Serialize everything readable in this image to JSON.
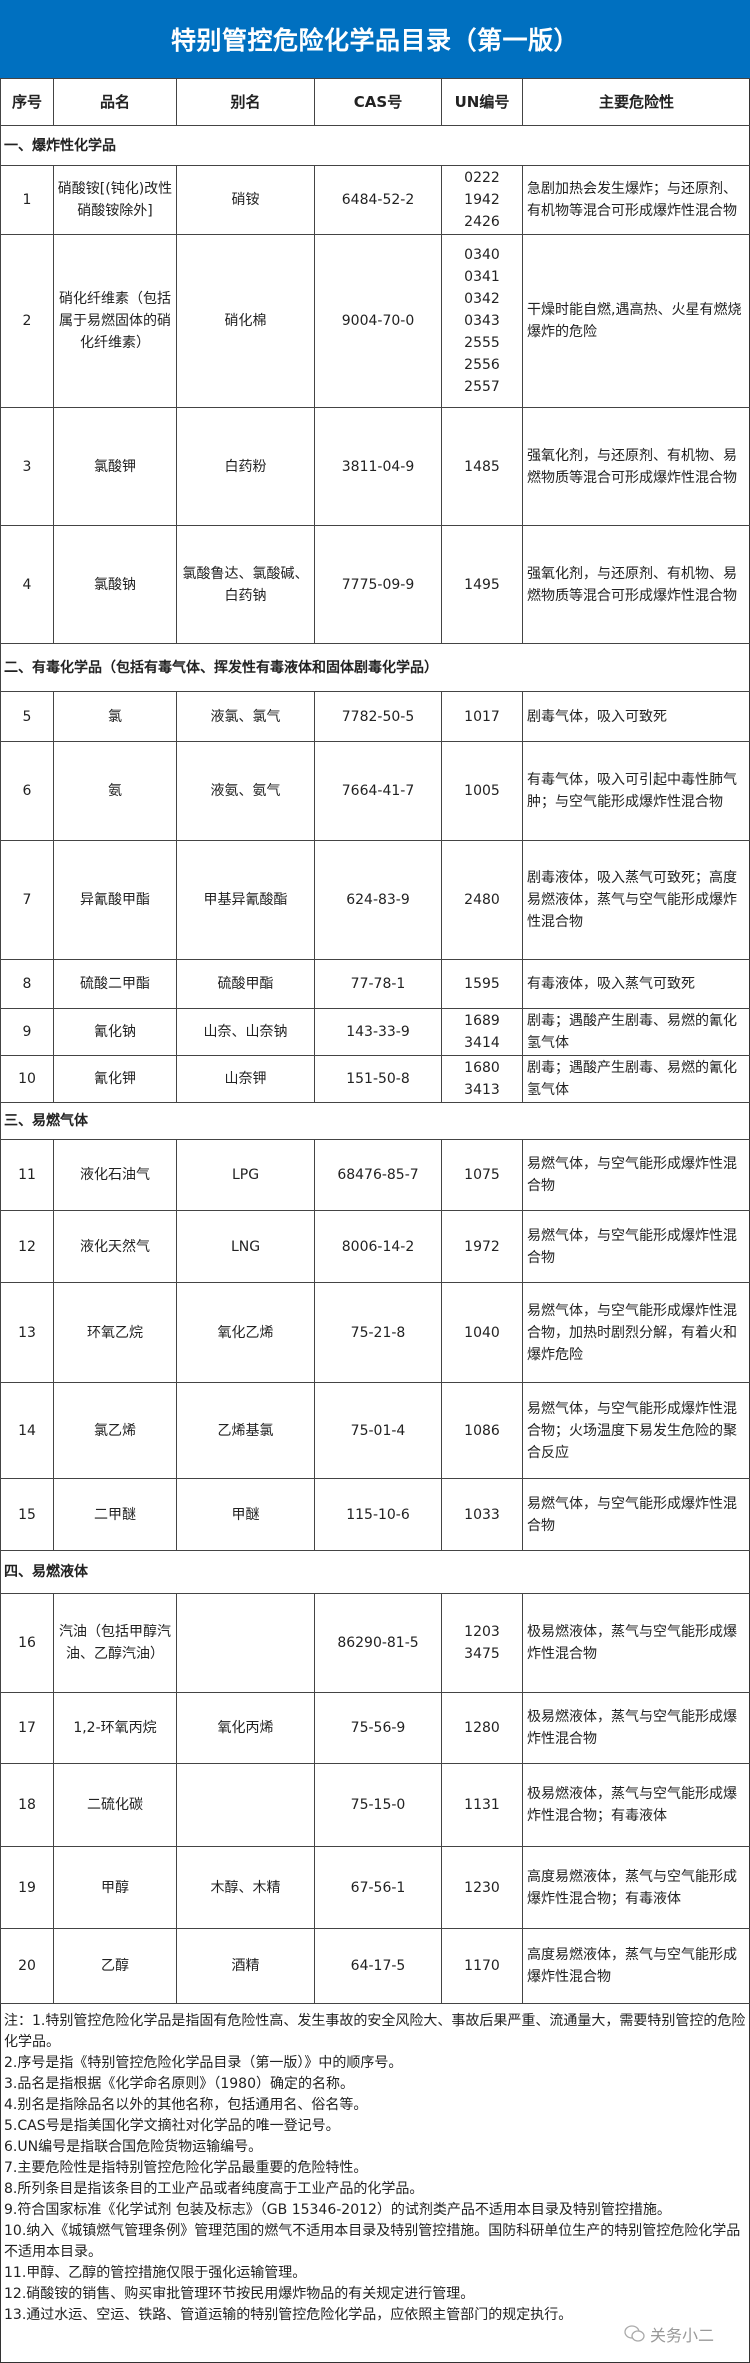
{
  "title": "特别管控危险化学品目录（第一版）",
  "columns": [
    "序号",
    "品名",
    "别名",
    "CAS号",
    "UN编号",
    "主要危险性"
  ],
  "sections": [
    {
      "heading": "一、爆炸性化学品",
      "rows": [
        {
          "no": "1",
          "name": "硝酸铵[(钝化)改性硝酸铵除外]",
          "alias": "硝铵",
          "cas": "6484-52-2",
          "un": "0222\n1942\n2426",
          "hazard": "急剧加热会发生爆炸；与还原剂、有机物等混合可形成爆炸性混合物"
        },
        {
          "no": "2",
          "name": "硝化纤维素（包括属于易燃固体的硝化纤维素）",
          "alias": "硝化棉",
          "cas": "9004-70-0",
          "un": "0340\n0341\n0342\n0343\n2555\n2556\n2557",
          "hazard": "干燥时能自燃,遇高热、火星有燃烧爆炸的危险"
        },
        {
          "no": "3",
          "name": "氯酸钾",
          "alias": "白药粉",
          "cas": "3811-04-9",
          "un": "1485",
          "hazard": "强氧化剂，与还原剂、有机物、易燃物质等混合可形成爆炸性混合物"
        },
        {
          "no": "4",
          "name": "氯酸钠",
          "alias": "氯酸鲁达、氯酸碱、白药钠",
          "cas": "7775-09-9",
          "un": "1495",
          "hazard": "强氧化剂，与还原剂、有机物、易燃物质等混合可形成爆炸性混合物"
        }
      ]
    },
    {
      "heading": "二、有毒化学品（包括有毒气体、挥发性有毒液体和固体剧毒化学品）",
      "rows": [
        {
          "no": "5",
          "name": "氯",
          "alias": "液氯、氯气",
          "cas": "7782-50-5",
          "un": "1017",
          "hazard": "剧毒气体，吸入可致死"
        },
        {
          "no": "6",
          "name": "氨",
          "alias": "液氨、氨气",
          "cas": "7664-41-7",
          "un": "1005",
          "hazard": "有毒气体，吸入可引起中毒性肺气肿；与空气能形成爆炸性混合物"
        },
        {
          "no": "7",
          "name": "异氰酸甲酯",
          "alias": "甲基异氰酸酯",
          "cas": "624-83-9",
          "un": "2480",
          "hazard": "剧毒液体，吸入蒸气可致死；高度易燃液体，蒸气与空气能形成爆炸性混合物"
        },
        {
          "no": "8",
          "name": "硫酸二甲酯",
          "alias": "硫酸甲酯",
          "cas": "77-78-1",
          "un": "1595",
          "hazard": "有毒液体，吸入蒸气可致死"
        },
        {
          "no": "9",
          "name": "氰化钠",
          "alias": "山奈、山奈钠",
          "cas": "143-33-9",
          "un": "1689\n3414",
          "hazard": "剧毒；遇酸产生剧毒、易燃的氰化氢气体"
        },
        {
          "no": "10",
          "name": "氰化钾",
          "alias": "山奈钾",
          "cas": "151-50-8",
          "un": "1680\n3413",
          "hazard": "剧毒；遇酸产生剧毒、易燃的氰化氢气体"
        }
      ]
    },
    {
      "heading": "三、易燃气体",
      "rows": [
        {
          "no": "11",
          "name": "液化石油气",
          "alias": "LPG",
          "cas": "68476-85-7",
          "un": "1075",
          "hazard": "易燃气体，与空气能形成爆炸性混合物"
        },
        {
          "no": "12",
          "name": "液化天然气",
          "alias": "LNG",
          "cas": "8006-14-2",
          "un": "1972",
          "hazard": "易燃气体，与空气能形成爆炸性混合物"
        },
        {
          "no": "13",
          "name": "环氧乙烷",
          "alias": "氧化乙烯",
          "cas": "75-21-8",
          "un": "1040",
          "hazard": "易燃气体，与空气能形成爆炸性混合物，加热时剧烈分解，有着火和爆炸危险"
        },
        {
          "no": "14",
          "name": "氯乙烯",
          "alias": "乙烯基氯",
          "cas": "75-01-4",
          "un": "1086",
          "hazard": "易燃气体，与空气能形成爆炸性混合物；火场温度下易发生危险的聚合反应"
        },
        {
          "no": "15",
          "name": "二甲醚",
          "alias": "甲醚",
          "cas": "115-10-6",
          "un": "1033",
          "hazard": "易燃气体，与空气能形成爆炸性混合物"
        }
      ]
    },
    {
      "heading": "四、易燃液体",
      "rows": [
        {
          "no": "16",
          "name": "汽油（包括甲醇汽油、乙醇汽油）",
          "alias": "",
          "cas": "86290-81-5",
          "un": "1203\n3475",
          "hazard": "极易燃液体，蒸气与空气能形成爆炸性混合物"
        },
        {
          "no": "17",
          "name": "1,2-环氧丙烷",
          "alias": "氧化丙烯",
          "cas": "75-56-9",
          "un": "1280",
          "hazard": "极易燃液体，蒸气与空气能形成爆炸性混合物"
        },
        {
          "no": "18",
          "name": "二硫化碳",
          "alias": "",
          "cas": "75-15-0",
          "un": "1131",
          "hazard": "极易燃液体，蒸气与空气能形成爆炸性混合物；有毒液体"
        },
        {
          "no": "19",
          "name": "甲醇",
          "alias": "木醇、木精",
          "cas": "67-56-1",
          "un": "1230",
          "hazard": "高度易燃液体，蒸气与空气能形成爆炸性混合物；有毒液体"
        },
        {
          "no": "20",
          "name": "乙醇",
          "alias": "酒精",
          "cas": "64-17-5",
          "un": "1170",
          "hazard": "高度易燃液体，蒸气与空气能形成爆炸性混合物"
        }
      ]
    }
  ],
  "notes": [
    "注：1.特别管控危险化学品是指固有危险性高、发生事故的安全风险大、事故后果严重、流通量大，需要特别管控的危险化学品。",
    "2.序号是指《特别管控危险化学品目录（第一版）》中的顺序号。",
    "3.品名是指根据《化学命名原则》（1980）确定的名称。",
    "4.别名是指除品名以外的其他名称，包括通用名、俗名等。",
    "5.CAS号是指美国化学文摘社对化学品的唯一登记号。",
    "6.UN编号是指联合国危险货物运输编号。",
    "7.主要危险性是指特别管控危险化学品最重要的危险特性。",
    "8.所列条目是指该条目的工业产品或者纯度高于工业产品的化学品。",
    "9.符合国家标准《化学试剂 包装及标志》（GB 15346-2012）的试剂类产品不适用本目录及特别管控措施。",
    "10.纳入《城镇燃气管理条例》管理范围的燃气不适用本目录及特别管控措施。国防科研单位生产的特别管控危险化学品不适用本目录。",
    "11.甲醇、乙醇的管控措施仅限于强化运输管理。",
    "12.硝酸铵的销售、购买审批管理环节按民用爆炸物品的有关规定进行管理。",
    "13.通过水运、空运、铁路、管道运输的特别管控危险化学品，应依照主管部门的规定执行。"
  ],
  "watermark": "关务小二",
  "colors": {
    "title_bg": "#0070C0",
    "title_text": "#FFFFFF"
  }
}
